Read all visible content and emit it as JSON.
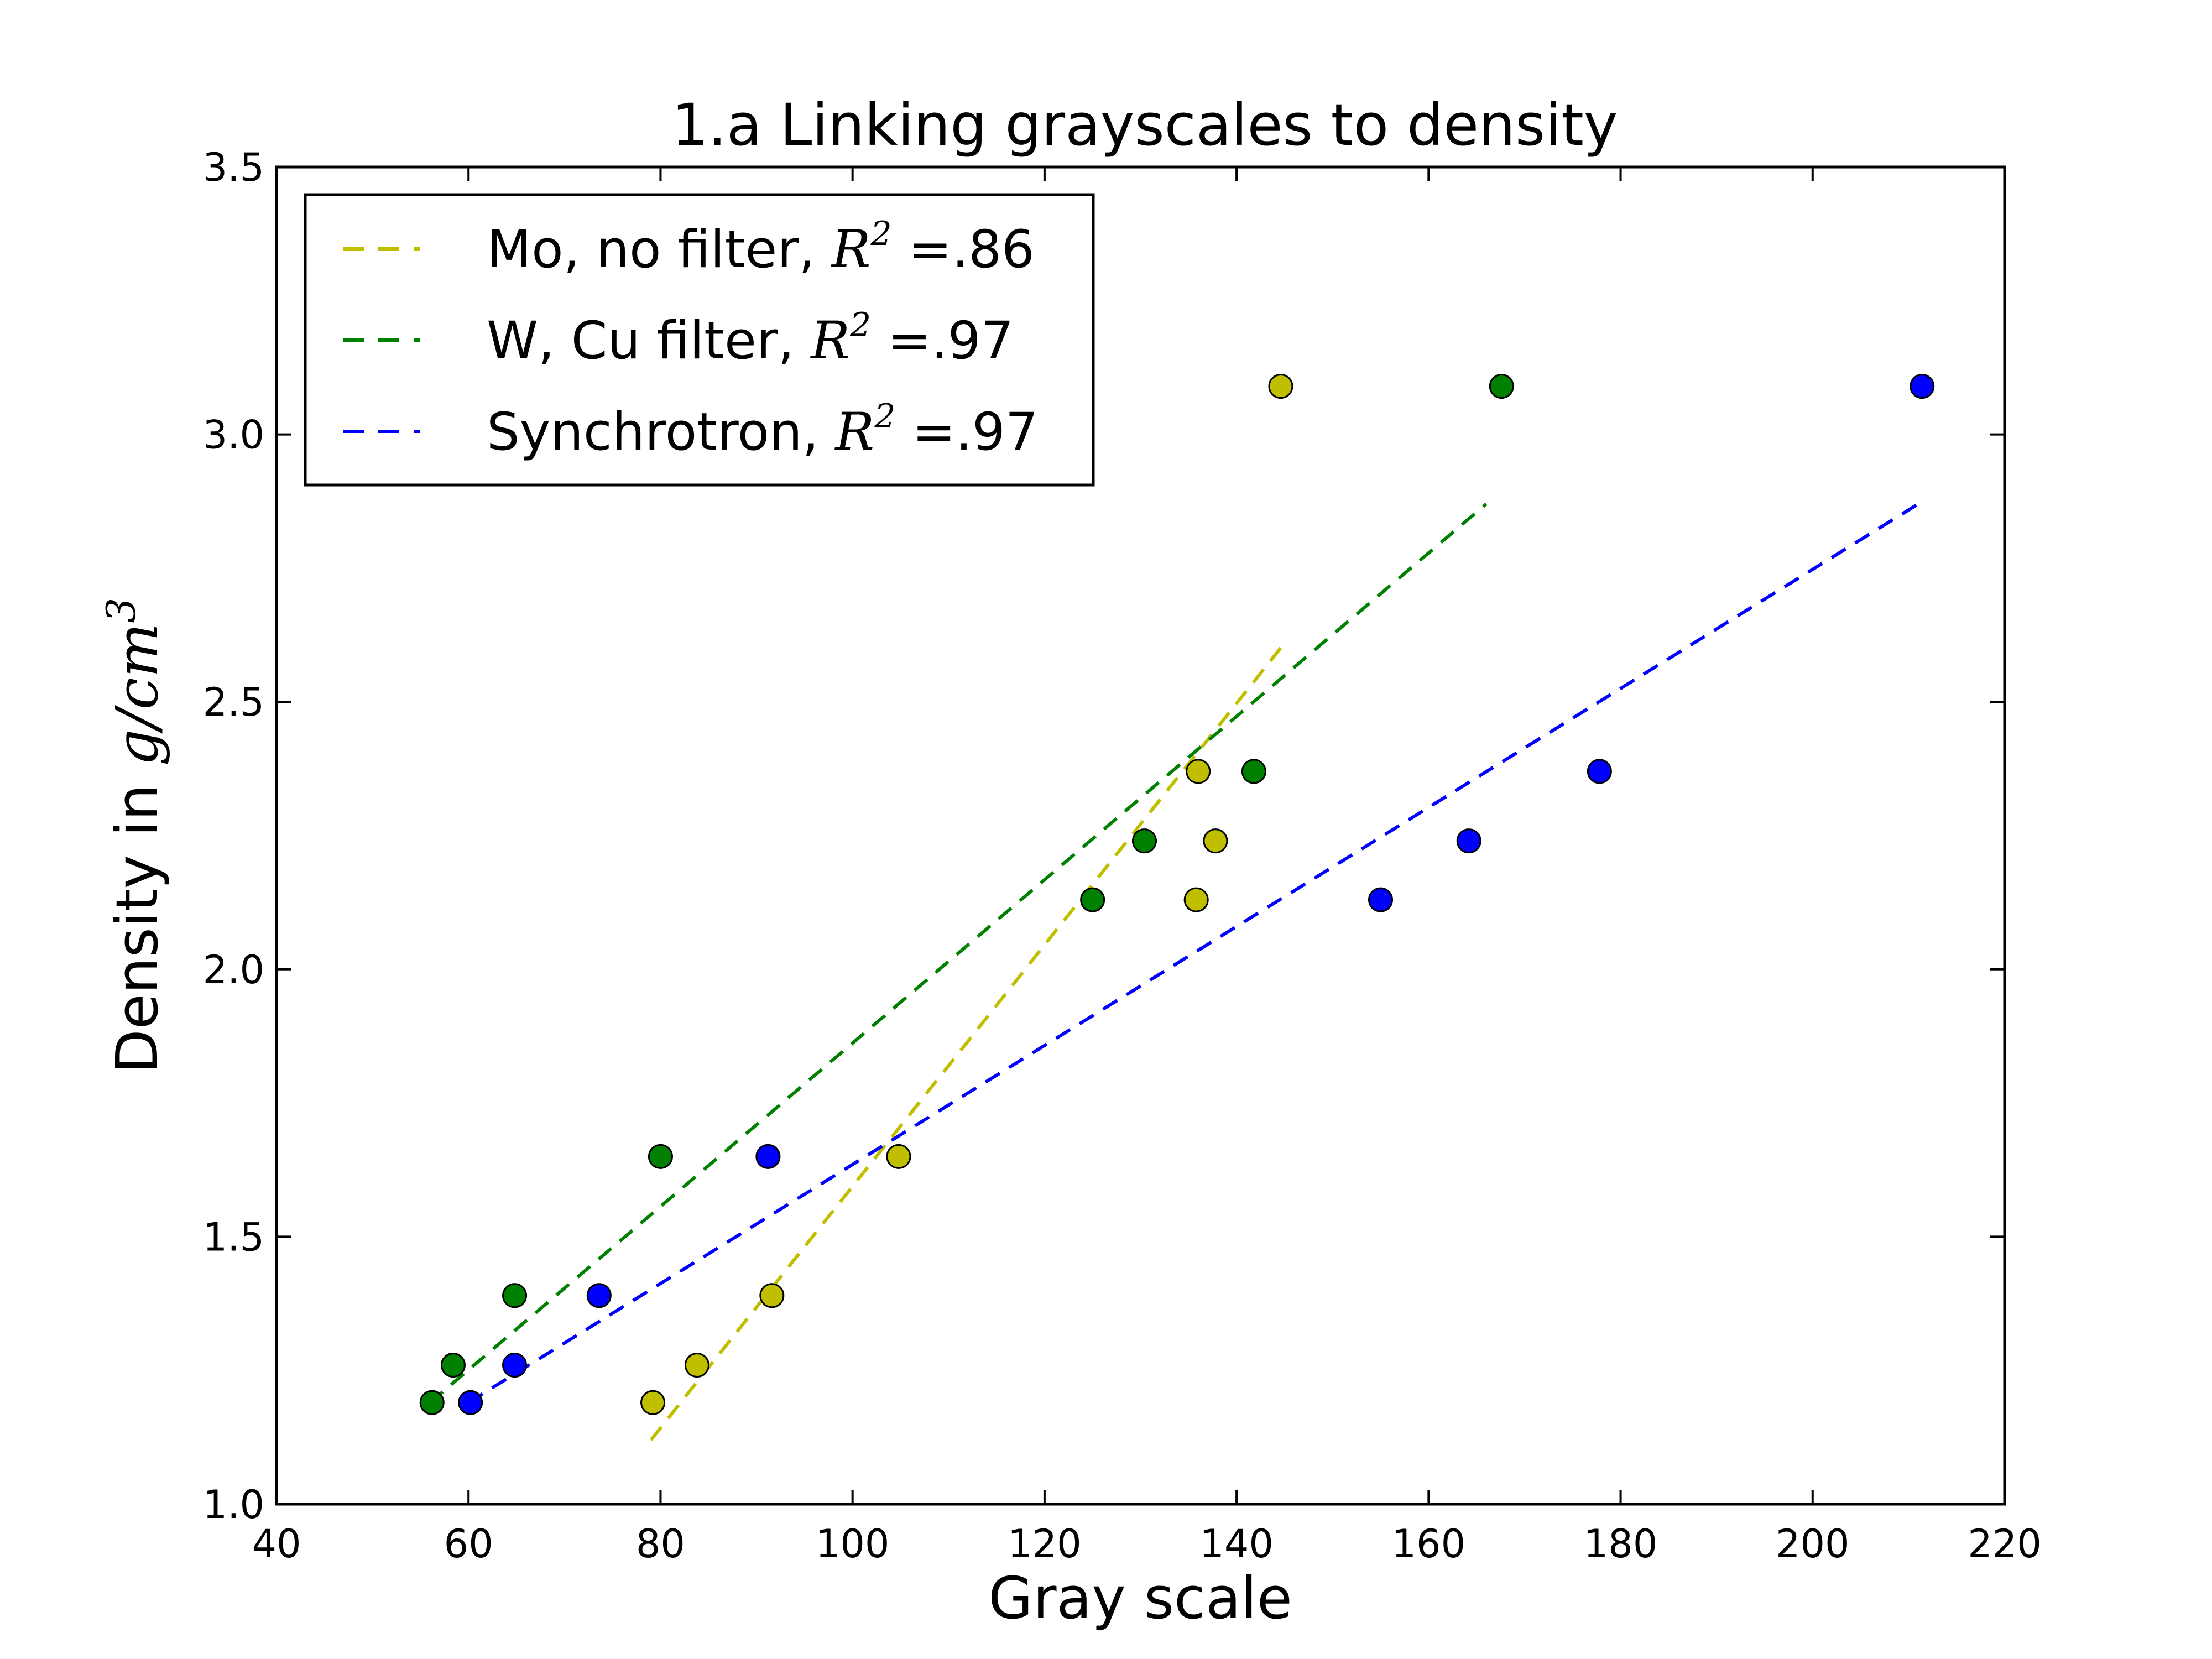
{
  "chart_data": {
    "type": "scatter",
    "title": "1.a  Linking grayscales to density",
    "xlabel": "Gray scale",
    "ylabel_prefix": "Density in ",
    "ylabel_math": "g/cm",
    "ylabel_sup": "3",
    "xlim": [
      40,
      220
    ],
    "ylim": [
      1.0,
      3.5
    ],
    "xticks": [
      "40",
      "60",
      "80",
      "100",
      "120",
      "140",
      "160",
      "180",
      "200",
      "220"
    ],
    "yticks": [
      "1.0",
      "1.5",
      "2.0",
      "2.5",
      "3.0",
      "3.5"
    ],
    "grid": false,
    "legend_position": "top-left",
    "series": [
      {
        "name": "Mo, no filter, ",
        "r2_label": "R",
        "r2_sup": "2",
        "r2_value": " =.86",
        "color": "#bfbf00",
        "x": [
          79.2,
          83.8,
          91.6,
          104.8,
          135.8,
          136.0,
          137.8,
          144.6
        ],
        "y": [
          1.19,
          1.26,
          1.39,
          1.65,
          2.13,
          2.37,
          2.24,
          3.09
        ],
        "fit_x": [
          79.0,
          145.0
        ],
        "fit_y": [
          1.12,
          2.61
        ]
      },
      {
        "name": "W, Cu filter, ",
        "r2_label": "R",
        "r2_sup": "2",
        "r2_value": " =.97",
        "color": "#008000",
        "x": [
          56.2,
          58.4,
          64.8,
          80.0,
          125.0,
          130.4,
          141.8,
          167.6
        ],
        "y": [
          1.19,
          1.26,
          1.39,
          1.65,
          2.13,
          2.24,
          2.37,
          3.09
        ],
        "fit_x": [
          56.0,
          166.0
        ],
        "fit_y": [
          1.19,
          2.87
        ]
      },
      {
        "name": "Synchrotron, ",
        "r2_label": "R",
        "r2_sup": "2",
        "r2_value": " =.97",
        "color": "#0000ff",
        "x": [
          60.2,
          64.8,
          73.6,
          91.2,
          155.0,
          164.2,
          177.8,
          211.4
        ],
        "y": [
          1.19,
          1.26,
          1.39,
          1.65,
          2.13,
          2.24,
          2.37,
          3.09
        ],
        "fit_x": [
          60.0,
          211.0
        ],
        "fit_y": [
          1.19,
          2.87
        ]
      }
    ]
  }
}
